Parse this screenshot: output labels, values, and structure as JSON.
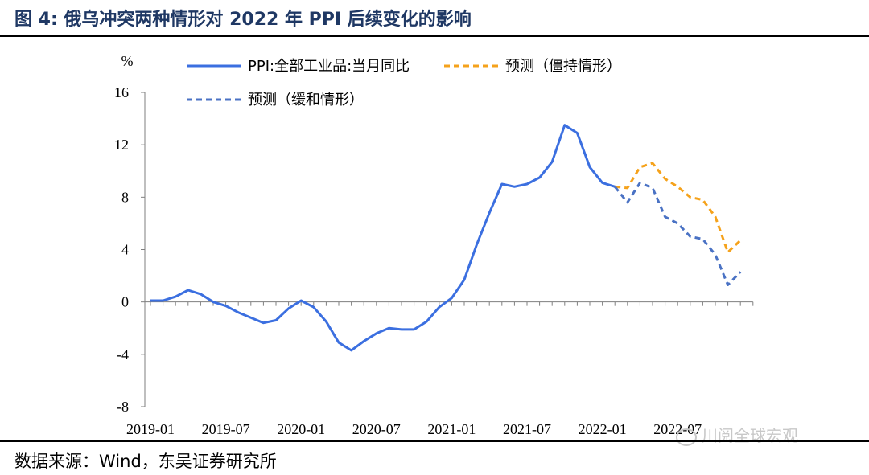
{
  "title": "图 4:  俄乌冲突两种情形对 2022 年 PPI 后续变化的影响",
  "source": "数据来源：Wind，东吴证券研究所",
  "watermark": "川阅全球宏观",
  "chart_data": {
    "type": "line",
    "ylabel": "%",
    "ylim": [
      -8,
      16
    ],
    "yticks": [
      -8,
      -4,
      0,
      4,
      8,
      12,
      16
    ],
    "xlim": [
      "2019-01",
      "2022-12"
    ],
    "xticks": [
      "2019-01",
      "2019-07",
      "2020-01",
      "2020-07",
      "2021-01",
      "2021-07",
      "2022-01",
      "2022-07"
    ],
    "legend": "top-center",
    "grid": false,
    "series": [
      {
        "name": "PPI:全部工业品:当月同比",
        "color": "#3b6fe0",
        "style": "solid",
        "points": [
          [
            "2019-01",
            0.1
          ],
          [
            "2019-02",
            0.1
          ],
          [
            "2019-03",
            0.4
          ],
          [
            "2019-04",
            0.9
          ],
          [
            "2019-05",
            0.6
          ],
          [
            "2019-06",
            0.0
          ],
          [
            "2019-07",
            -0.3
          ],
          [
            "2019-08",
            -0.8
          ],
          [
            "2019-09",
            -1.2
          ],
          [
            "2019-10",
            -1.6
          ],
          [
            "2019-11",
            -1.4
          ],
          [
            "2019-12",
            -0.5
          ],
          [
            "2020-01",
            0.1
          ],
          [
            "2020-02",
            -0.4
          ],
          [
            "2020-03",
            -1.5
          ],
          [
            "2020-04",
            -3.1
          ],
          [
            "2020-05",
            -3.7
          ],
          [
            "2020-06",
            -3.0
          ],
          [
            "2020-07",
            -2.4
          ],
          [
            "2020-08",
            -2.0
          ],
          [
            "2020-09",
            -2.1
          ],
          [
            "2020-10",
            -2.1
          ],
          [
            "2020-11",
            -1.5
          ],
          [
            "2020-12",
            -0.4
          ],
          [
            "2021-01",
            0.3
          ],
          [
            "2021-02",
            1.7
          ],
          [
            "2021-03",
            4.4
          ],
          [
            "2021-04",
            6.8
          ],
          [
            "2021-05",
            9.0
          ],
          [
            "2021-06",
            8.8
          ],
          [
            "2021-07",
            9.0
          ],
          [
            "2021-08",
            9.5
          ],
          [
            "2021-09",
            10.7
          ],
          [
            "2021-10",
            13.5
          ],
          [
            "2021-11",
            12.9
          ],
          [
            "2021-12",
            10.3
          ],
          [
            "2022-01",
            9.1
          ],
          [
            "2022-02",
            8.8
          ]
        ]
      },
      {
        "name": "预测（僵持情形）",
        "color": "#f5a21b",
        "style": "dashed",
        "points": [
          [
            "2022-02",
            8.8
          ],
          [
            "2022-03",
            8.7
          ],
          [
            "2022-04",
            10.3
          ],
          [
            "2022-05",
            10.6
          ],
          [
            "2022-06",
            9.4
          ],
          [
            "2022-07",
            8.8
          ],
          [
            "2022-08",
            8.0
          ],
          [
            "2022-09",
            7.8
          ],
          [
            "2022-10",
            6.5
          ],
          [
            "2022-11",
            3.8
          ],
          [
            "2022-12",
            4.7
          ]
        ]
      },
      {
        "name": "预测（缓和情形）",
        "color": "#4a72c4",
        "style": "dashed",
        "points": [
          [
            "2022-02",
            8.8
          ],
          [
            "2022-03",
            7.6
          ],
          [
            "2022-04",
            9.1
          ],
          [
            "2022-05",
            8.7
          ],
          [
            "2022-06",
            6.5
          ],
          [
            "2022-07",
            6.0
          ],
          [
            "2022-08",
            5.0
          ],
          [
            "2022-09",
            4.8
          ],
          [
            "2022-10",
            3.6
          ],
          [
            "2022-11",
            1.3
          ],
          [
            "2022-12",
            2.3
          ]
        ]
      }
    ]
  }
}
